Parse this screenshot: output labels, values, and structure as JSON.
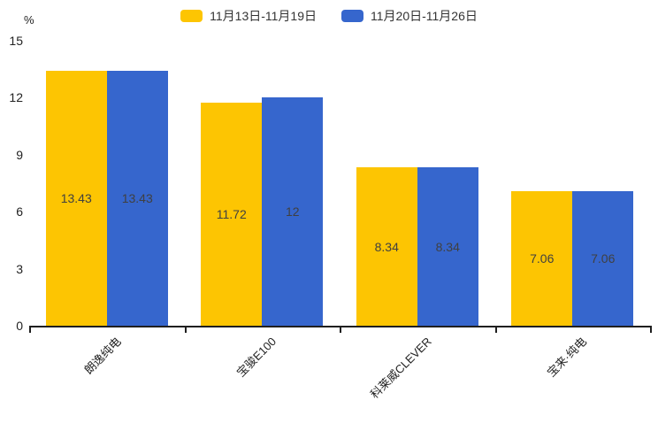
{
  "chart_data": {
    "type": "bar",
    "title": "",
    "unit_label": "%",
    "categories": [
      "朗逸纯电",
      "宝骏E100",
      "科莱威CLEVER",
      "宝来·纯电"
    ],
    "series": [
      {
        "name": "11月13日-11月19日",
        "color": "#FDC502",
        "values": [
          13.43,
          11.72,
          8.34,
          7.06
        ]
      },
      {
        "name": "11月20日-11月26日",
        "color": "#3666CD",
        "values": [
          13.43,
          12,
          8.34,
          7.06
        ]
      }
    ],
    "ylim": [
      0,
      15
    ],
    "yticks": [
      0,
      3,
      6,
      9,
      12,
      15
    ],
    "grid": false,
    "legend_position": "top",
    "colors": {
      "bar_value_label": "#404040",
      "axis": "#1f1f1f",
      "tick_text": "#222222",
      "legend_text": "#333333"
    }
  }
}
